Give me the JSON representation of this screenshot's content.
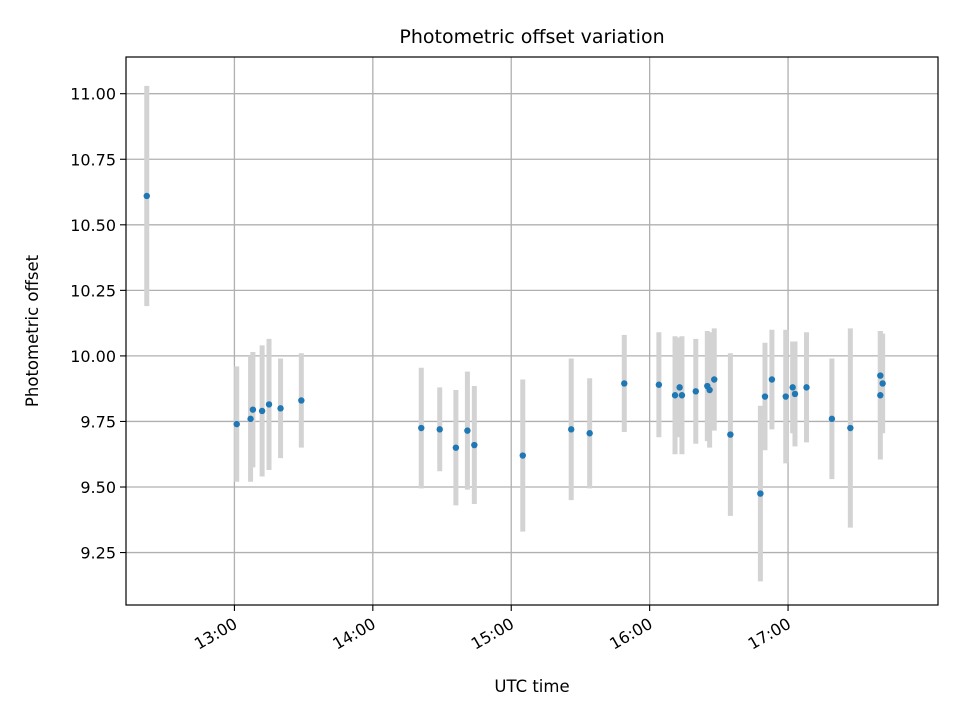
{
  "chart_data": {
    "type": "scatter",
    "title": "Photometric offset variation",
    "xlabel": "UTC time",
    "ylabel": "Photometric offset",
    "x_axis_type": "time",
    "x_ticks": [
      "13:00",
      "14:00",
      "15:00",
      "16:00",
      "17:00"
    ],
    "xlim": [
      "12:13",
      "18:05"
    ],
    "y_ticks": [
      "9.25",
      "9.50",
      "9.75",
      "10.00",
      "10.25",
      "10.50",
      "10.75",
      "11.00"
    ],
    "ylim": [
      9.05,
      11.14
    ],
    "grid": true,
    "colors": {
      "point": "#1f77b4",
      "errorbar": "#d3d3d3",
      "grid": "#b0b0b0"
    },
    "points": [
      {
        "x": "12:22",
        "y": 10.61,
        "err": 0.42
      },
      {
        "x": "13:01",
        "y": 9.74,
        "err": 0.22
      },
      {
        "x": "13:07",
        "y": 9.76,
        "err": 0.24
      },
      {
        "x": "13:08",
        "y": 9.795,
        "err": 0.22
      },
      {
        "x": "13:12",
        "y": 9.79,
        "err": 0.25
      },
      {
        "x": "13:15",
        "y": 9.815,
        "err": 0.25
      },
      {
        "x": "13:20",
        "y": 9.8,
        "err": 0.19
      },
      {
        "x": "13:29",
        "y": 9.83,
        "err": 0.18
      },
      {
        "x": "14:21",
        "y": 9.725,
        "err": 0.23
      },
      {
        "x": "14:29",
        "y": 9.72,
        "err": 0.16
      },
      {
        "x": "14:36",
        "y": 9.65,
        "err": 0.22
      },
      {
        "x": "14:41",
        "y": 9.715,
        "err": 0.225
      },
      {
        "x": "14:44",
        "y": 9.66,
        "err": 0.225
      },
      {
        "x": "15:05",
        "y": 9.62,
        "err": 0.29
      },
      {
        "x": "15:26",
        "y": 9.72,
        "err": 0.27
      },
      {
        "x": "15:34",
        "y": 9.705,
        "err": 0.21
      },
      {
        "x": "15:49",
        "y": 9.895,
        "err": 0.185
      },
      {
        "x": "16:04",
        "y": 9.89,
        "err": 0.2
      },
      {
        "x": "16:11",
        "y": 9.85,
        "err": 0.225
      },
      {
        "x": "16:13",
        "y": 9.88,
        "err": 0.19
      },
      {
        "x": "16:14",
        "y": 9.85,
        "err": 0.225
      },
      {
        "x": "16:20",
        "y": 9.865,
        "err": 0.2
      },
      {
        "x": "16:25",
        "y": 9.885,
        "err": 0.21
      },
      {
        "x": "16:26",
        "y": 9.87,
        "err": 0.22
      },
      {
        "x": "16:28",
        "y": 9.91,
        "err": 0.195
      },
      {
        "x": "16:35",
        "y": 9.7,
        "err": 0.31
      },
      {
        "x": "16:48",
        "y": 9.475,
        "err": 0.335
      },
      {
        "x": "16:50",
        "y": 9.845,
        "err": 0.205
      },
      {
        "x": "16:53",
        "y": 9.91,
        "err": 0.19
      },
      {
        "x": "16:59",
        "y": 9.845,
        "err": 0.255
      },
      {
        "x": "17:02",
        "y": 9.88,
        "err": 0.175
      },
      {
        "x": "17:03",
        "y": 9.855,
        "err": 0.2
      },
      {
        "x": "17:08",
        "y": 9.88,
        "err": 0.21
      },
      {
        "x": "17:19",
        "y": 9.76,
        "err": 0.23
      },
      {
        "x": "17:27",
        "y": 9.725,
        "err": 0.38
      },
      {
        "x": "17:40",
        "y": 9.85,
        "err": 0.245
      },
      {
        "x": "17:40",
        "y": 9.925,
        "err": 0.17
      },
      {
        "x": "17:41",
        "y": 9.895,
        "err": 0.19
      }
    ]
  }
}
